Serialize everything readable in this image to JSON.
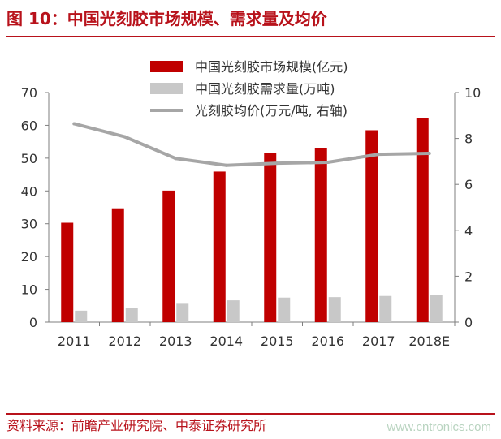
{
  "figure": {
    "title": "图 10：中国光刻胶市场规模、需求量及均价",
    "source": "资料来源：前瞻产业研究院、中泰证券研究所",
    "watermark": "www.cntronics.com"
  },
  "colors": {
    "brand_red": "#b8121b",
    "bar_market": "#c00000",
    "bar_demand": "#c8c8c8",
    "line_price": "#a6a6a6",
    "axis": "#7f7f7f"
  },
  "chart_data": {
    "type": "bar",
    "categories": [
      "2011",
      "2012",
      "2013",
      "2014",
      "2015",
      "2016",
      "2017",
      "2018E"
    ],
    "series": [
      {
        "name": "中国光刻胶市场规模(亿元)",
        "type": "bar",
        "axis": "left",
        "values": [
          30.3,
          34.7,
          40.1,
          45.9,
          51.5,
          53.1,
          58.5,
          62.2
        ]
      },
      {
        "name": "中国光刻胶需求量(万吨)",
        "type": "bar",
        "axis": "right",
        "values": [
          0.5,
          0.6,
          0.8,
          0.95,
          1.07,
          1.09,
          1.14,
          1.2
        ]
      },
      {
        "name": "光刻胶均价(万元/吨, 右轴)",
        "type": "line",
        "axis": "right",
        "values": [
          8.64,
          8.07,
          7.13,
          6.83,
          6.92,
          6.96,
          7.31,
          7.35
        ]
      }
    ],
    "ylim_left": [
      0,
      70
    ],
    "yticks_left": [
      "0",
      "10",
      "20",
      "30",
      "40",
      "50",
      "60",
      "70"
    ],
    "ylim_right": [
      0,
      10
    ],
    "yticks_right": [
      "0",
      "2",
      "4",
      "6",
      "8",
      "10"
    ],
    "legend_position": "top-right",
    "grid": false
  }
}
